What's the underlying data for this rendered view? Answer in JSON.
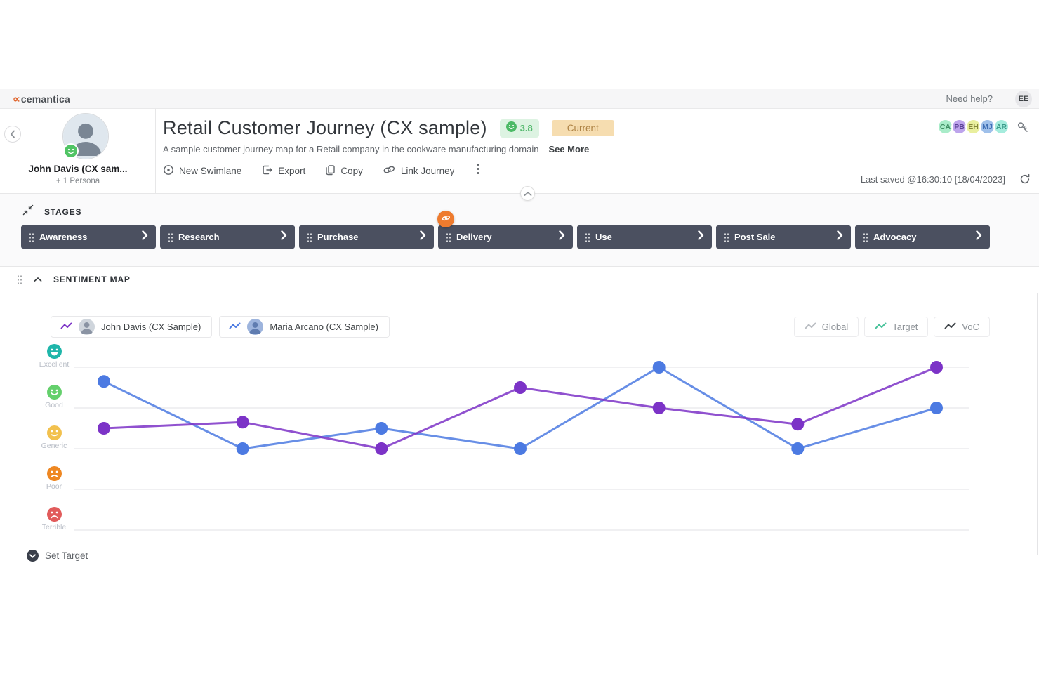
{
  "topbar": {
    "logo": "cemantica",
    "help": "Need help?",
    "user_initials": "EE"
  },
  "header": {
    "persona": {
      "name": "John Davis (CX sam...",
      "sub": "+ 1 Persona"
    },
    "title": "Retail Customer Journey (CX sample)",
    "rating": "3.8",
    "status_badge": "Current",
    "description": "A sample customer journey map for a Retail company in the cookware manufacturing domain",
    "see_more": "See More",
    "toolbar": [
      {
        "label": "New Swimlane",
        "icon": "target-icon"
      },
      {
        "label": "Export",
        "icon": "export-icon"
      },
      {
        "label": "Copy",
        "icon": "copy-icon"
      },
      {
        "label": "Link Journey",
        "icon": "link-icon"
      }
    ],
    "collaborators": [
      {
        "initials": "CA",
        "bg": "#a9ecc9",
        "fg": "#3f8f63"
      },
      {
        "initials": "PB",
        "bg": "#bda4ec",
        "fg": "#5a4196"
      },
      {
        "initials": "EH",
        "bg": "#e9ef9e",
        "fg": "#84883a"
      },
      {
        "initials": "MJ",
        "bg": "#9fc0ea",
        "fg": "#3f6fb5"
      },
      {
        "initials": "AR",
        "bg": "#a5ecdd",
        "fg": "#3a9a8a"
      }
    ],
    "last_saved": "Last saved @16:30:10 [18/04/2023]"
  },
  "stages": {
    "label": "STAGES",
    "items": [
      {
        "name": "Awareness",
        "linked": false
      },
      {
        "name": "Research",
        "linked": false
      },
      {
        "name": "Purchase",
        "linked": false
      },
      {
        "name": "Delivery",
        "linked": true
      },
      {
        "name": "Use",
        "linked": false
      },
      {
        "name": "Post Sale",
        "linked": false
      },
      {
        "name": "Advocacy",
        "linked": false
      }
    ]
  },
  "sentiment": {
    "label": "SENTIMENT MAP",
    "legend": [
      {
        "name": "John Davis (CX Sample)",
        "color": "#7c33c7",
        "avatar_bg": "#cfd5dc",
        "avatar_fg": "#8a93a3"
      },
      {
        "name": "Maria Arcano (CX Sample)",
        "color": "#4c7ae2",
        "avatar_bg": "#9db4dd",
        "avatar_fg": "#5f7cb0"
      }
    ],
    "filters": [
      {
        "label": "Global",
        "color": "#b9bdc2"
      },
      {
        "label": "Target",
        "color": "#47c29a"
      },
      {
        "label": "VoC",
        "color": "#3f4449"
      }
    ],
    "set_target": "Set Target"
  },
  "chart_data": {
    "type": "line",
    "title": "Sentiment Map",
    "categories": [
      "Awareness",
      "Research",
      "Purchase",
      "Delivery",
      "Use",
      "Post Sale",
      "Advocacy"
    ],
    "y_axis": {
      "labels": [
        "Excellent",
        "Good",
        "Generic",
        "Poor",
        "Terrible"
      ],
      "values": [
        5,
        4,
        3,
        2,
        1
      ],
      "face_colors": [
        "#1fb6aa",
        "#64d06c",
        "#f2c14e",
        "#ee8722",
        "#e15b5b"
      ],
      "face_moods": [
        "excellent",
        "good",
        "generic",
        "poor",
        "terrible"
      ]
    },
    "series": [
      {
        "name": "John Davis (CX Sample)",
        "color": "#7c33c7",
        "values": [
          3.5,
          3.65,
          3.0,
          4.5,
          4.0,
          3.6,
          5.0
        ]
      },
      {
        "name": "Maria Arcano (CX Sample)",
        "color": "#4c7ae2",
        "values": [
          4.65,
          3.0,
          3.5,
          3.0,
          5.0,
          3.0,
          4.0
        ]
      }
    ],
    "ylim": [
      1,
      5
    ],
    "grid": true,
    "legend_position": "top-left"
  }
}
